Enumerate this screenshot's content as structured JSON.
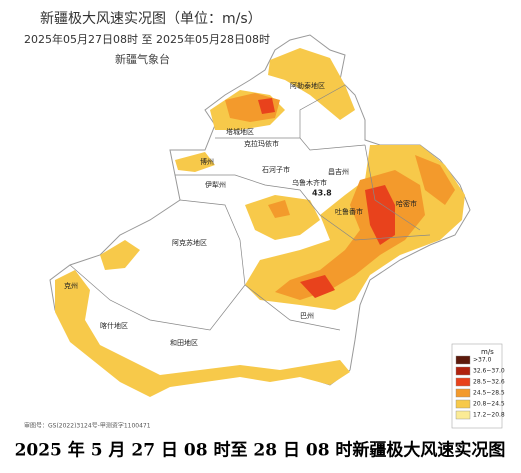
{
  "header": {
    "title": "新疆极大风速实况图（单位：m/s）",
    "time_range": "2025年05月27日08时  至  2025年05月28日08时",
    "source": "新疆气象台"
  },
  "regions": [
    {
      "label": "阿勒泰地区"
    },
    {
      "label": "塔城地区"
    },
    {
      "label": "克拉玛依市"
    },
    {
      "label": "博州"
    },
    {
      "label": "石河子市"
    },
    {
      "label": "昌吉州"
    },
    {
      "label": "伊犁州"
    },
    {
      "label": "乌鲁木齐市"
    },
    {
      "label": "吐鲁番市"
    },
    {
      "label": "哈密市"
    },
    {
      "label": "阿克苏地区"
    },
    {
      "label": "巴州"
    },
    {
      "label": "克州"
    },
    {
      "label": "喀什地区"
    },
    {
      "label": "和田地区"
    }
  ],
  "max_label": "43.8",
  "legend": {
    "unit": "m/s",
    "items": [
      {
        "label": ">37.0",
        "color": "#5c1a0c"
      },
      {
        "label": "32.6~37.0",
        "color": "#b0230f"
      },
      {
        "label": "28.5~32.6",
        "color": "#e8421c"
      },
      {
        "label": "24.5~28.5",
        "color": "#f39a2c"
      },
      {
        "label": "20.8~24.5",
        "color": "#f7c94a"
      },
      {
        "label": "17.2~20.8",
        "color": "#fbeb96"
      }
    ]
  },
  "map_number": "审图号：GS(2022)3124号-甲测资字1100471",
  "caption": "2025 年 5 月 27 日 08 时至 28 日 08 时新疆极大风速实况图"
}
